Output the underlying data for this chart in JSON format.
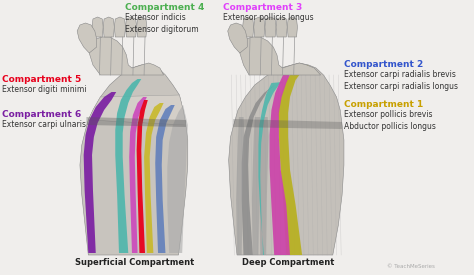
{
  "bg_color": "#f0eeec",
  "labels": {
    "compartment5_title": "Compartment 5",
    "compartment5_body": "Extensor digiti minimi",
    "compartment5_color": "#e8001c",
    "compartment6_title": "Compartment 6",
    "compartment6_body": "Extensor carpi ulnaris",
    "compartment6_color": "#7b1fa2",
    "compartment4_title": "Compartment 4",
    "compartment4_body": "Extensor indicis\nExtensor digitorum",
    "compartment4_color": "#4caf50",
    "compartment3_title": "Compartment 3",
    "compartment3_body": "Extensor pollicis longus",
    "compartment3_color": "#e040fb",
    "compartment2_title": "Compartment 2",
    "compartment2_body": "Extensor carpi radialis brevis\nExtensor carpi radialis longus",
    "compartment2_color": "#3355cc",
    "compartment1_title": "Compartment 1",
    "compartment1_body": "Extensor pollicis brevis\nAbductor pollicis longus",
    "compartment1_color": "#c8a000",
    "label_superficial": "Superficial Compartment",
    "label_deep": "Deep Compartment",
    "watermark": "© TeachMeSeries"
  }
}
